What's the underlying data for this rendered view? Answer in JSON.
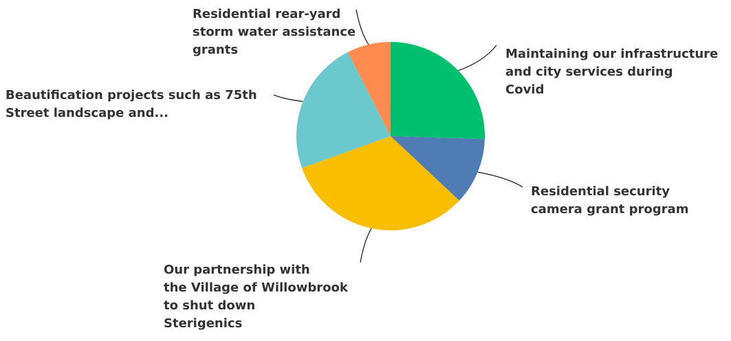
{
  "chart_data": {
    "type": "pie",
    "title": "",
    "start_angle_deg": 0,
    "direction": "clockwise",
    "slices": [
      {
        "label_lines": [
          "Maintaining our infrastructure",
          "and city services during",
          "Covid"
        ],
        "value": 25.5,
        "color": "#00BF6F"
      },
      {
        "label_lines": [
          "Residential security",
          "camera grant program"
        ],
        "value": 11.5,
        "color": "#507CB6"
      },
      {
        "label_lines": [
          "Our partnership with",
          "the Village of Willowbrook",
          "to shut down",
          "Sterigenics"
        ],
        "value": 32.5,
        "color": "#F9BE00"
      },
      {
        "label_lines": [
          "Beautification projects such as 75th",
          "Street landscape and..."
        ],
        "value": 23.0,
        "color": "#6BC8CD"
      },
      {
        "label_lines": [
          "Residential rear-yard",
          "storm water assistance",
          "grants"
        ],
        "value": 7.5,
        "color": "#FF8B4F"
      }
    ]
  }
}
